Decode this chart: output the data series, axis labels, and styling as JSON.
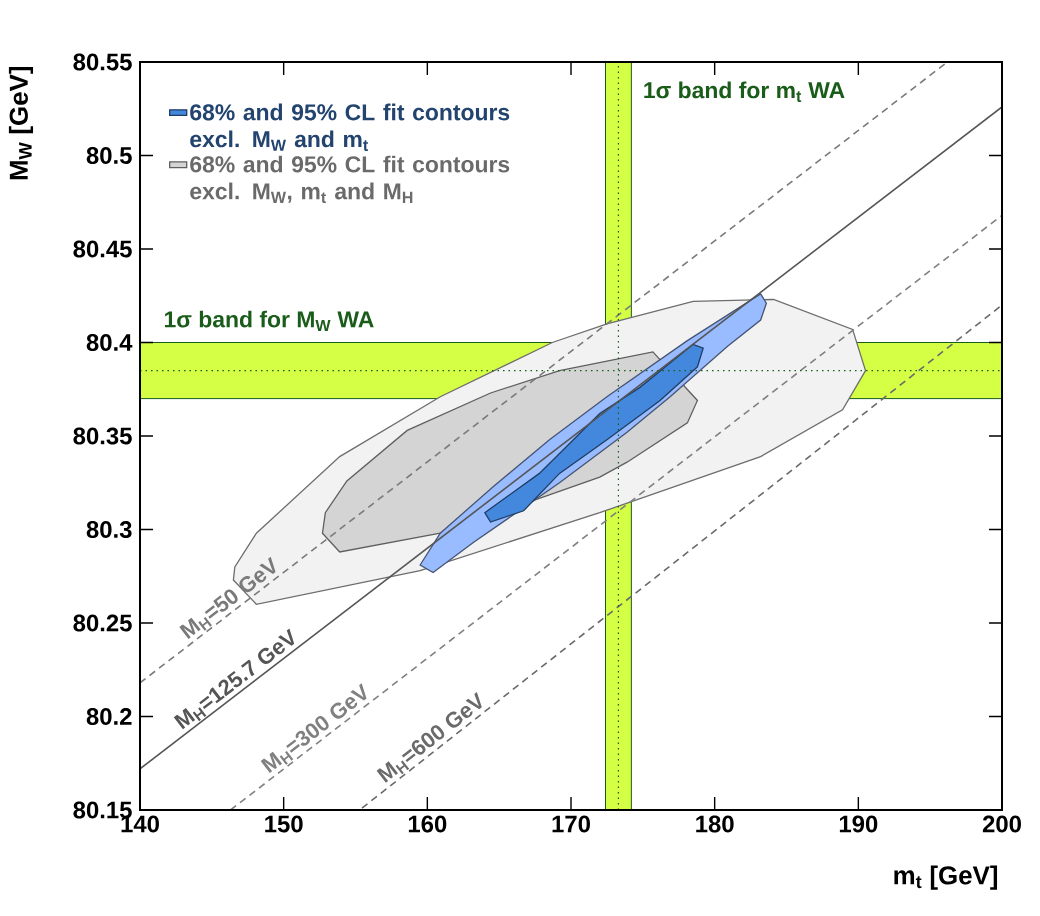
{
  "chart_data": {
    "type": "area",
    "xlabel": "m$_{t}$ [GeV]",
    "ylabel": "M$_{W}$ [GeV]",
    "xlim": [
      140,
      200
    ],
    "ylim": [
      80.15,
      80.55
    ],
    "xticks": [
      140,
      150,
      160,
      170,
      180,
      190,
      200
    ],
    "yticks": [
      80.15,
      80.2,
      80.25,
      80.3,
      80.35,
      80.4,
      80.45,
      80.5,
      80.55
    ],
    "legend": "top left",
    "bands": [
      {
        "axis": "x",
        "from": 172.4,
        "to": 174.2,
        "label": "1σ band for m$_{t}$ WA",
        "color": "#d4ff44"
      },
      {
        "axis": "y",
        "from": 80.37,
        "to": 80.4,
        "label": "1σ band for M$_{W}$ WA",
        "color": "#d4ff44"
      }
    ],
    "ref_lines": [
      {
        "axis": "x",
        "value": 173.3,
        "color": "#1a5c1a",
        "line_style": "dotted"
      },
      {
        "axis": "y",
        "value": 80.385,
        "color": "#1a5c1a",
        "line_style": "dotted"
      }
    ],
    "series": [
      {
        "color": "#f2f2f2",
        "x": [
          146.5,
          148.1,
          159.5,
          172.0,
          183.2,
          188.9,
          190.5,
          189.6,
          184.1,
          178.5,
          172.5,
          168.7,
          160.9,
          153.9,
          148.1,
          146.6
        ],
        "values": [
          80.273,
          80.26,
          80.278,
          80.309,
          80.339,
          80.364,
          80.385,
          80.407,
          80.423,
          80.422,
          80.41,
          80.4,
          80.371,
          80.339,
          80.298,
          80.28
        ]
      },
      {
        "name": "68% and 95% CL fit contours excl. M$_{W}$, m$_{t}$ and M$_{H}$",
        "color": "#d4d4d4",
        "x": [
          152.7,
          153.9,
          160.9,
          172.0,
          173.9,
          178.1,
          178.8,
          178.7,
          175.7,
          169.2,
          164.4,
          158.6,
          154.4,
          152.9
        ],
        "values": [
          80.298,
          80.288,
          80.298,
          80.328,
          80.336,
          80.357,
          80.369,
          null,
          80.395,
          80.385,
          80.373,
          80.353,
          80.326,
          80.309
        ]
      },
      {
        "color": "#99bbff",
        "x": [
          159.5,
          160.9,
          164.6,
          168.5,
          172.5,
          178.1,
          183.2,
          183.6,
          183.2,
          180.9,
          176.9,
          173.9,
          169.2,
          163.2,
          160.4
        ],
        "values": [
          80.281,
          80.298,
          80.323,
          80.348,
          80.371,
          80.401,
          80.426,
          80.421,
          80.412,
          80.398,
          80.371,
          80.352,
          80.325,
          80.293,
          80.277
        ]
      },
      {
        "name": "68% and 95% CL fit contours excl. M$_{W}$ and m$_{t}$",
        "color": "#4488dd",
        "x": [
          164.0,
          167.8,
          172.0,
          174.8,
          178.5,
          179.2,
          178.8,
          176.2,
          172.5,
          169.2,
          166.7,
          164.4
        ],
        "values": [
          80.309,
          80.33,
          80.362,
          80.376,
          80.399,
          80.397,
          80.387,
          80.369,
          80.348,
          80.33,
          80.31,
          80.304
        ]
      },
      {
        "type": "line",
        "name": "M$_{H}$=50 GeV",
        "color": "#7a7a7a",
        "line_style": "dashed",
        "x": [
          140,
          196.2
        ],
        "values": [
          80.218,
          80.55
        ]
      },
      {
        "type": "line",
        "name": "M$_{H}$=125.7 GeV",
        "color": "#555555",
        "line_style": "solid",
        "x": [
          140,
          200
        ],
        "values": [
          80.172,
          80.526
        ]
      },
      {
        "type": "line",
        "name": "M$_{H}$=300 GeV",
        "color": "#808080",
        "line_style": "dashed",
        "x": [
          146.3,
          200
        ],
        "values": [
          80.15,
          80.468
        ]
      },
      {
        "type": "line",
        "name": "M$_{H}$=600 GeV",
        "color": "#6a6a6a",
        "line_style": "dashed",
        "x": [
          155.45,
          200
        ],
        "values": [
          80.151,
          80.42
        ]
      }
    ]
  }
}
